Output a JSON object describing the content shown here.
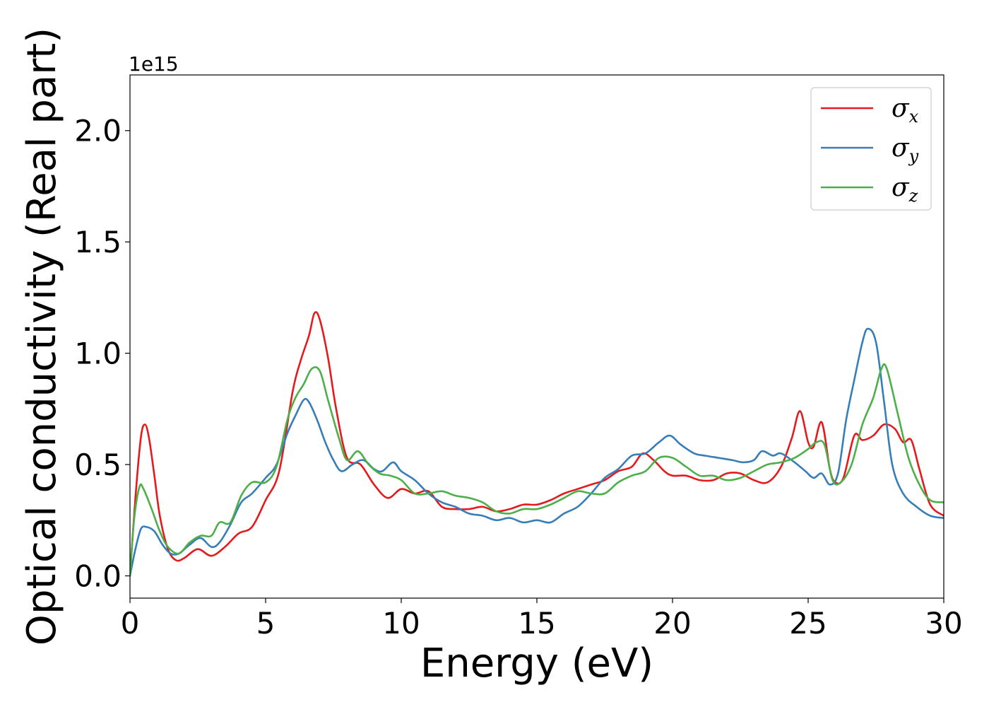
{
  "chart_data": {
    "type": "line",
    "xlabel": "Energy (eV)",
    "ylabel": "Optical conductivity (Real part)",
    "y_offset_label": "1e15",
    "xlim": [
      0,
      30
    ],
    "ylim": [
      -0.1,
      2.25
    ],
    "xticks": [
      0,
      5,
      10,
      15,
      20,
      25,
      30
    ],
    "xtick_labels": [
      "0",
      "5",
      "10",
      "15",
      "20",
      "25",
      "30"
    ],
    "yticks": [
      0.0,
      0.5,
      1.0,
      1.5,
      2.0
    ],
    "ytick_labels": [
      "0.0",
      "0.5",
      "1.0",
      "1.5",
      "2.0"
    ],
    "grid": false,
    "legend": "top-right",
    "series": [
      {
        "name": "σx",
        "name_base": "σ",
        "name_sub": "x",
        "color": "#e41a1c",
        "x": [
          0,
          0.2,
          0.4,
          0.55,
          0.7,
          0.9,
          1.1,
          1.4,
          1.7,
          2.0,
          2.5,
          3.0,
          3.5,
          4.0,
          4.5,
          5.0,
          5.5,
          6.0,
          6.3,
          6.6,
          6.8,
          7.0,
          7.3,
          7.6,
          8.0,
          8.5,
          9.0,
          9.5,
          10.0,
          10.5,
          11.0,
          11.5,
          12.0,
          12.5,
          13.0,
          13.5,
          14.0,
          14.5,
          15.0,
          15.5,
          16.0,
          16.5,
          17.0,
          17.5,
          18.0,
          18.5,
          18.9,
          19.3,
          19.7,
          20.0,
          20.5,
          21.0,
          21.5,
          22.0,
          22.5,
          23.0,
          23.5,
          24.0,
          24.4,
          24.7,
          25.0,
          25.2,
          25.5,
          25.8,
          26.0,
          26.3,
          26.7,
          27.0,
          27.4,
          27.8,
          28.2,
          28.5,
          28.8,
          29.1,
          29.5,
          30.0
        ],
        "values": [
          0,
          0.35,
          0.62,
          0.68,
          0.62,
          0.45,
          0.27,
          0.12,
          0.07,
          0.08,
          0.12,
          0.09,
          0.13,
          0.19,
          0.22,
          0.34,
          0.47,
          0.83,
          0.97,
          1.08,
          1.18,
          1.15,
          0.98,
          0.75,
          0.53,
          0.5,
          0.41,
          0.35,
          0.39,
          0.37,
          0.38,
          0.31,
          0.3,
          0.3,
          0.31,
          0.29,
          0.3,
          0.32,
          0.32,
          0.34,
          0.37,
          0.39,
          0.41,
          0.43,
          0.47,
          0.49,
          0.55,
          0.52,
          0.47,
          0.45,
          0.45,
          0.43,
          0.43,
          0.46,
          0.46,
          0.43,
          0.42,
          0.49,
          0.62,
          0.74,
          0.6,
          0.58,
          0.69,
          0.48,
          0.42,
          0.44,
          0.63,
          0.61,
          0.63,
          0.68,
          0.66,
          0.6,
          0.61,
          0.48,
          0.32,
          0.27
        ]
      },
      {
        "name": "σy",
        "name_base": "σ",
        "name_sub": "y",
        "color": "#377eb8",
        "x": [
          0,
          0.2,
          0.4,
          0.6,
          0.9,
          1.2,
          1.5,
          1.8,
          2.2,
          2.6,
          3.0,
          3.3,
          3.7,
          4.1,
          4.5,
          5.0,
          5.4,
          5.8,
          6.1,
          6.4,
          6.6,
          6.9,
          7.2,
          7.5,
          7.8,
          8.2,
          8.6,
          9.0,
          9.3,
          9.7,
          10.0,
          10.5,
          11.0,
          11.5,
          12.0,
          12.5,
          13.0,
          13.5,
          14.0,
          14.5,
          15.0,
          15.5,
          16.0,
          16.5,
          17.0,
          17.5,
          18.0,
          18.5,
          19.0,
          19.5,
          19.9,
          20.3,
          20.8,
          21.2,
          21.7,
          22.2,
          22.6,
          23.0,
          23.3,
          23.7,
          24.0,
          24.5,
          24.9,
          25.2,
          25.5,
          25.8,
          26.1,
          26.4,
          26.7,
          27.0,
          27.2,
          27.5,
          27.8,
          28.1,
          28.5,
          29.0,
          29.5,
          30.0
        ],
        "values": [
          0,
          0.12,
          0.21,
          0.22,
          0.2,
          0.14,
          0.1,
          0.1,
          0.14,
          0.17,
          0.13,
          0.15,
          0.23,
          0.33,
          0.37,
          0.44,
          0.5,
          0.64,
          0.72,
          0.79,
          0.78,
          0.7,
          0.6,
          0.52,
          0.47,
          0.5,
          0.52,
          0.48,
          0.47,
          0.51,
          0.47,
          0.43,
          0.37,
          0.33,
          0.31,
          0.28,
          0.27,
          0.25,
          0.26,
          0.24,
          0.25,
          0.24,
          0.28,
          0.31,
          0.37,
          0.44,
          0.48,
          0.54,
          0.55,
          0.6,
          0.63,
          0.59,
          0.55,
          0.54,
          0.53,
          0.52,
          0.51,
          0.52,
          0.56,
          0.54,
          0.55,
          0.51,
          0.47,
          0.44,
          0.46,
          0.41,
          0.46,
          0.7,
          0.88,
          1.05,
          1.11,
          1.05,
          0.78,
          0.5,
          0.37,
          0.31,
          0.27,
          0.26
        ]
      },
      {
        "name": "σz",
        "name_base": "σ",
        "name_sub": "z",
        "color": "#4daf4a",
        "x": [
          0,
          0.15,
          0.35,
          0.5,
          0.8,
          1.1,
          1.4,
          1.8,
          2.2,
          2.6,
          3.0,
          3.3,
          3.7,
          4.1,
          4.5,
          5.0,
          5.4,
          5.8,
          6.1,
          6.4,
          6.7,
          7.0,
          7.3,
          7.7,
          8.0,
          8.4,
          8.8,
          9.2,
          9.6,
          10.0,
          10.5,
          11.0,
          11.5,
          12.0,
          12.5,
          13.0,
          13.5,
          14.0,
          14.5,
          15.0,
          15.5,
          16.0,
          16.5,
          17.0,
          17.5,
          18.0,
          18.5,
          19.0,
          19.5,
          20.0,
          20.5,
          21.0,
          21.5,
          22.0,
          22.5,
          23.0,
          23.5,
          24.0,
          24.5,
          25.0,
          25.3,
          25.6,
          25.9,
          26.2,
          26.6,
          27.0,
          27.4,
          27.7,
          27.9,
          28.3,
          28.7,
          29.1,
          29.5,
          30.0
        ],
        "values": [
          0,
          0.25,
          0.4,
          0.39,
          0.3,
          0.2,
          0.13,
          0.1,
          0.15,
          0.18,
          0.18,
          0.24,
          0.24,
          0.36,
          0.42,
          0.42,
          0.49,
          0.7,
          0.8,
          0.86,
          0.93,
          0.92,
          0.79,
          0.62,
          0.52,
          0.56,
          0.5,
          0.46,
          0.45,
          0.43,
          0.37,
          0.37,
          0.38,
          0.36,
          0.35,
          0.33,
          0.29,
          0.28,
          0.3,
          0.3,
          0.32,
          0.35,
          0.38,
          0.37,
          0.37,
          0.42,
          0.45,
          0.47,
          0.53,
          0.53,
          0.49,
          0.45,
          0.45,
          0.43,
          0.44,
          0.47,
          0.5,
          0.51,
          0.53,
          0.57,
          0.6,
          0.59,
          0.43,
          0.42,
          0.5,
          0.68,
          0.8,
          0.93,
          0.93,
          0.73,
          0.53,
          0.41,
          0.34,
          0.33
        ]
      }
    ]
  }
}
